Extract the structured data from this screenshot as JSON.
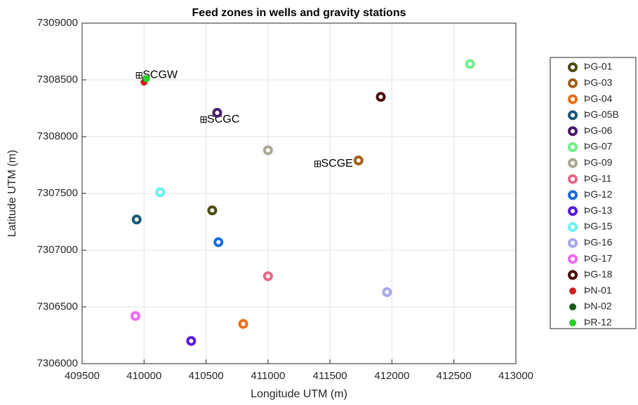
{
  "chart_data": {
    "type": "scatter",
    "title": "Feed zones in wells and gravity stations",
    "x_label": "Longitude UTM (m)",
    "y_label": "Latitude UTM (m)",
    "xlim": [
      409500,
      413000
    ],
    "xticks": [
      409500,
      410000,
      410500,
      411000,
      411500,
      412000,
      412500,
      413000
    ],
    "ylim": [
      7306000,
      7309000
    ],
    "yticks": [
      7306000,
      7306500,
      7307000,
      7307500,
      7308000,
      7308500,
      7309000
    ],
    "grid": true,
    "legend": "outside-right",
    "series": [
      {
        "name": "ÞG-01",
        "color": "#4d4d14",
        "marker": "ring",
        "x": [
          410550
        ],
        "y": [
          7307350
        ]
      },
      {
        "name": "ÞG-03",
        "color": "#a0601a",
        "marker": "ring",
        "x": [
          411730
        ],
        "y": [
          7307790
        ]
      },
      {
        "name": "ÞG-04",
        "color": "#e8701a",
        "marker": "ring",
        "x": [
          410800
        ],
        "y": [
          7306350
        ]
      },
      {
        "name": "ÞG-05B",
        "color": "#1a5a78",
        "marker": "ring",
        "x": [
          409940
        ],
        "y": [
          7307270
        ]
      },
      {
        "name": "ÞG-06",
        "color": "#4a1a6a",
        "marker": "ring",
        "x": [
          410590
        ],
        "y": [
          7308210
        ]
      },
      {
        "name": "ÞG-07",
        "color": "#6ef08a",
        "marker": "ring",
        "x": [
          412630
        ],
        "y": [
          7308640
        ]
      },
      {
        "name": "ÞG-09",
        "color": "#a8a890",
        "marker": "ring",
        "x": [
          411000
        ],
        "y": [
          7307880
        ]
      },
      {
        "name": "ÞG-11",
        "color": "#e86a88",
        "marker": "ring",
        "x": [
          411000
        ],
        "y": [
          7306770
        ]
      },
      {
        "name": "ÞG-12",
        "color": "#1a6ae0",
        "marker": "ring",
        "x": [
          410600
        ],
        "y": [
          7307070
        ]
      },
      {
        "name": "ÞG-13",
        "color": "#5a1ae0",
        "marker": "ring",
        "x": [
          410380
        ],
        "y": [
          7306200
        ]
      },
      {
        "name": "ÞG-15",
        "color": "#6af0f0",
        "marker": "ring",
        "x": [
          410130
        ],
        "y": [
          7307510
        ]
      },
      {
        "name": "ÞG-16",
        "color": "#a8a8e8",
        "marker": "ring",
        "x": [
          411960
        ],
        "y": [
          7306630
        ]
      },
      {
        "name": "ÞG-17",
        "color": "#f06af0",
        "marker": "ring",
        "x": [
          409930
        ],
        "y": [
          7306420
        ]
      },
      {
        "name": "ÞG-18",
        "color": "#4a0a0a",
        "marker": "ring",
        "x": [
          411910
        ],
        "y": [
          7308350
        ]
      },
      {
        "name": "ÞN-01",
        "color": "#d02020",
        "marker": "dot",
        "x": [
          410000
        ],
        "y": [
          7308480
        ]
      },
      {
        "name": "ÞN-02",
        "color": "#1a5a1a",
        "marker": "dot",
        "x": [
          410015
        ],
        "y": [
          7308510
        ]
      },
      {
        "name": "ÞR-12",
        "color": "#2ad02a",
        "marker": "dot",
        "x": [
          410020
        ],
        "y": [
          7308510
        ]
      }
    ],
    "stations": [
      {
        "label": "SCGW",
        "x": 409960,
        "y": 7308540
      },
      {
        "label": "SCGC",
        "x": 410480,
        "y": 7308150
      },
      {
        "label": "SCGE",
        "x": 411400,
        "y": 7307760
      }
    ]
  }
}
